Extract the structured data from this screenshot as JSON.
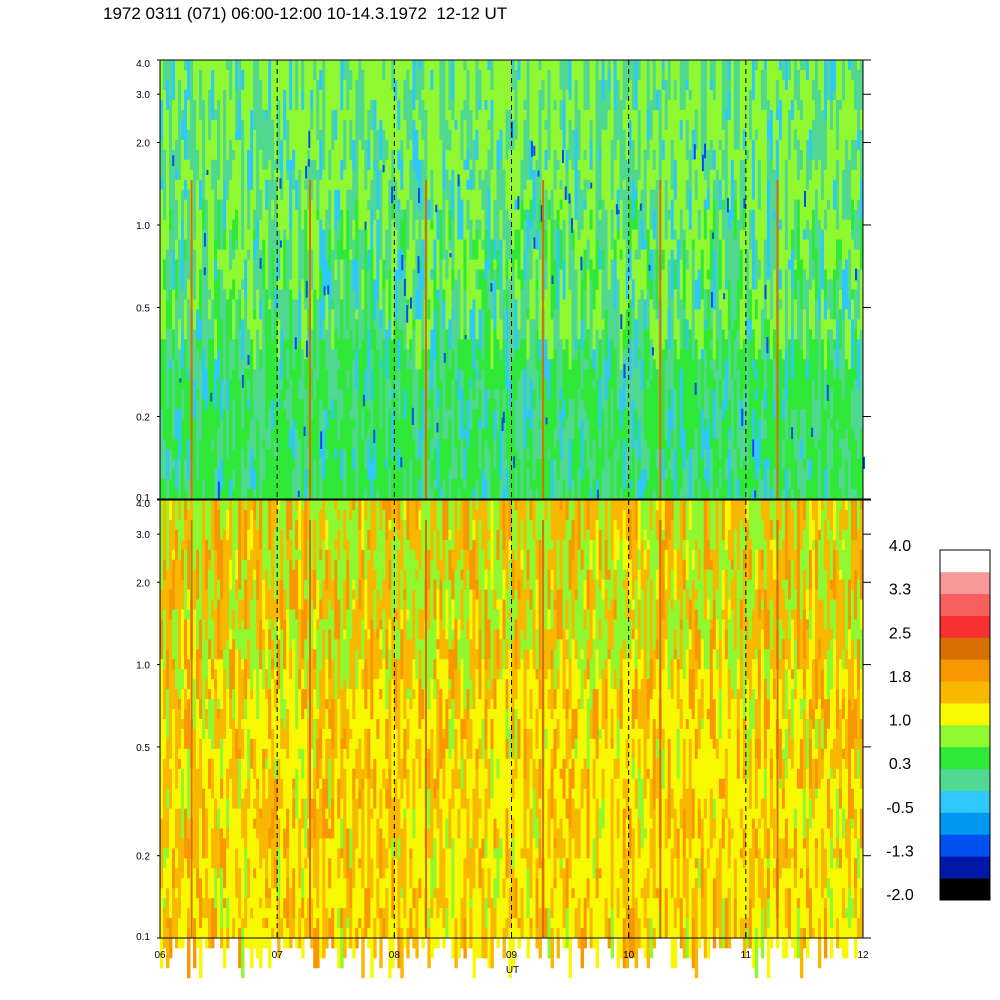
{
  "title": "1972 0311 (071) 06:00-12:00 10-14.3.1972  12-12 UT",
  "colors": {
    "colorbar_bins": [
      "#000000",
      "#0018a8",
      "#0050f0",
      "#0098f0",
      "#30c8f8",
      "#50d890",
      "#30e838",
      "#90f830",
      "#f8f800",
      "#f8b800",
      "#f89800",
      "#d87000",
      "#f83030",
      "#f86060",
      "#f89898",
      "#ffffff"
    ],
    "dash_line": "#000000",
    "frame": "#000000"
  },
  "chart_data": [
    {
      "type": "heatmap",
      "panel": "top",
      "title": "",
      "xlabel": "",
      "ylabel": "",
      "y_scale": "log",
      "ylim": [
        0.1,
        4.0
      ],
      "xlim": [
        6,
        12
      ],
      "y_ticks": [
        "0.1",
        "0.2",
        "0.5",
        "1.0",
        "2.0",
        "3.0",
        "4.0"
      ],
      "vertical_dashed_lines_at_hours": [
        7,
        8,
        9,
        10,
        11
      ],
      "dominant_colors": [
        "#30e838",
        "#50d890",
        "#90f830",
        "#30c8f8"
      ],
      "spike_hours": [
        6.27,
        7.28,
        8.27,
        9.27,
        10.27,
        11.27
      ]
    },
    {
      "type": "heatmap",
      "panel": "bottom",
      "title": "",
      "xlabel": "UT",
      "ylabel": "",
      "y_scale": "log",
      "ylim": [
        0.1,
        4.0
      ],
      "xlim": [
        6,
        12
      ],
      "x_ticks": [
        "06",
        "07",
        "08",
        "09",
        "10",
        "11",
        "12"
      ],
      "y_ticks": [
        "0.1",
        "0.2",
        "0.5",
        "1.0",
        "2.0",
        "3.0",
        "4.0"
      ],
      "vertical_dashed_lines_at_hours": [
        7,
        8,
        9,
        10,
        11
      ],
      "dominant_colors": [
        "#f8f800",
        "#f8b800",
        "#90f830",
        "#f89800"
      ],
      "spike_hours": [
        6.27,
        7.28,
        8.27,
        9.27,
        10.27,
        11.27
      ]
    }
  ],
  "colorbar": {
    "labels": [
      "4.0",
      "3.3",
      "2.5",
      "1.8",
      "1.0",
      "0.3",
      "-0.5",
      "-1.3",
      "-2.0"
    ]
  }
}
